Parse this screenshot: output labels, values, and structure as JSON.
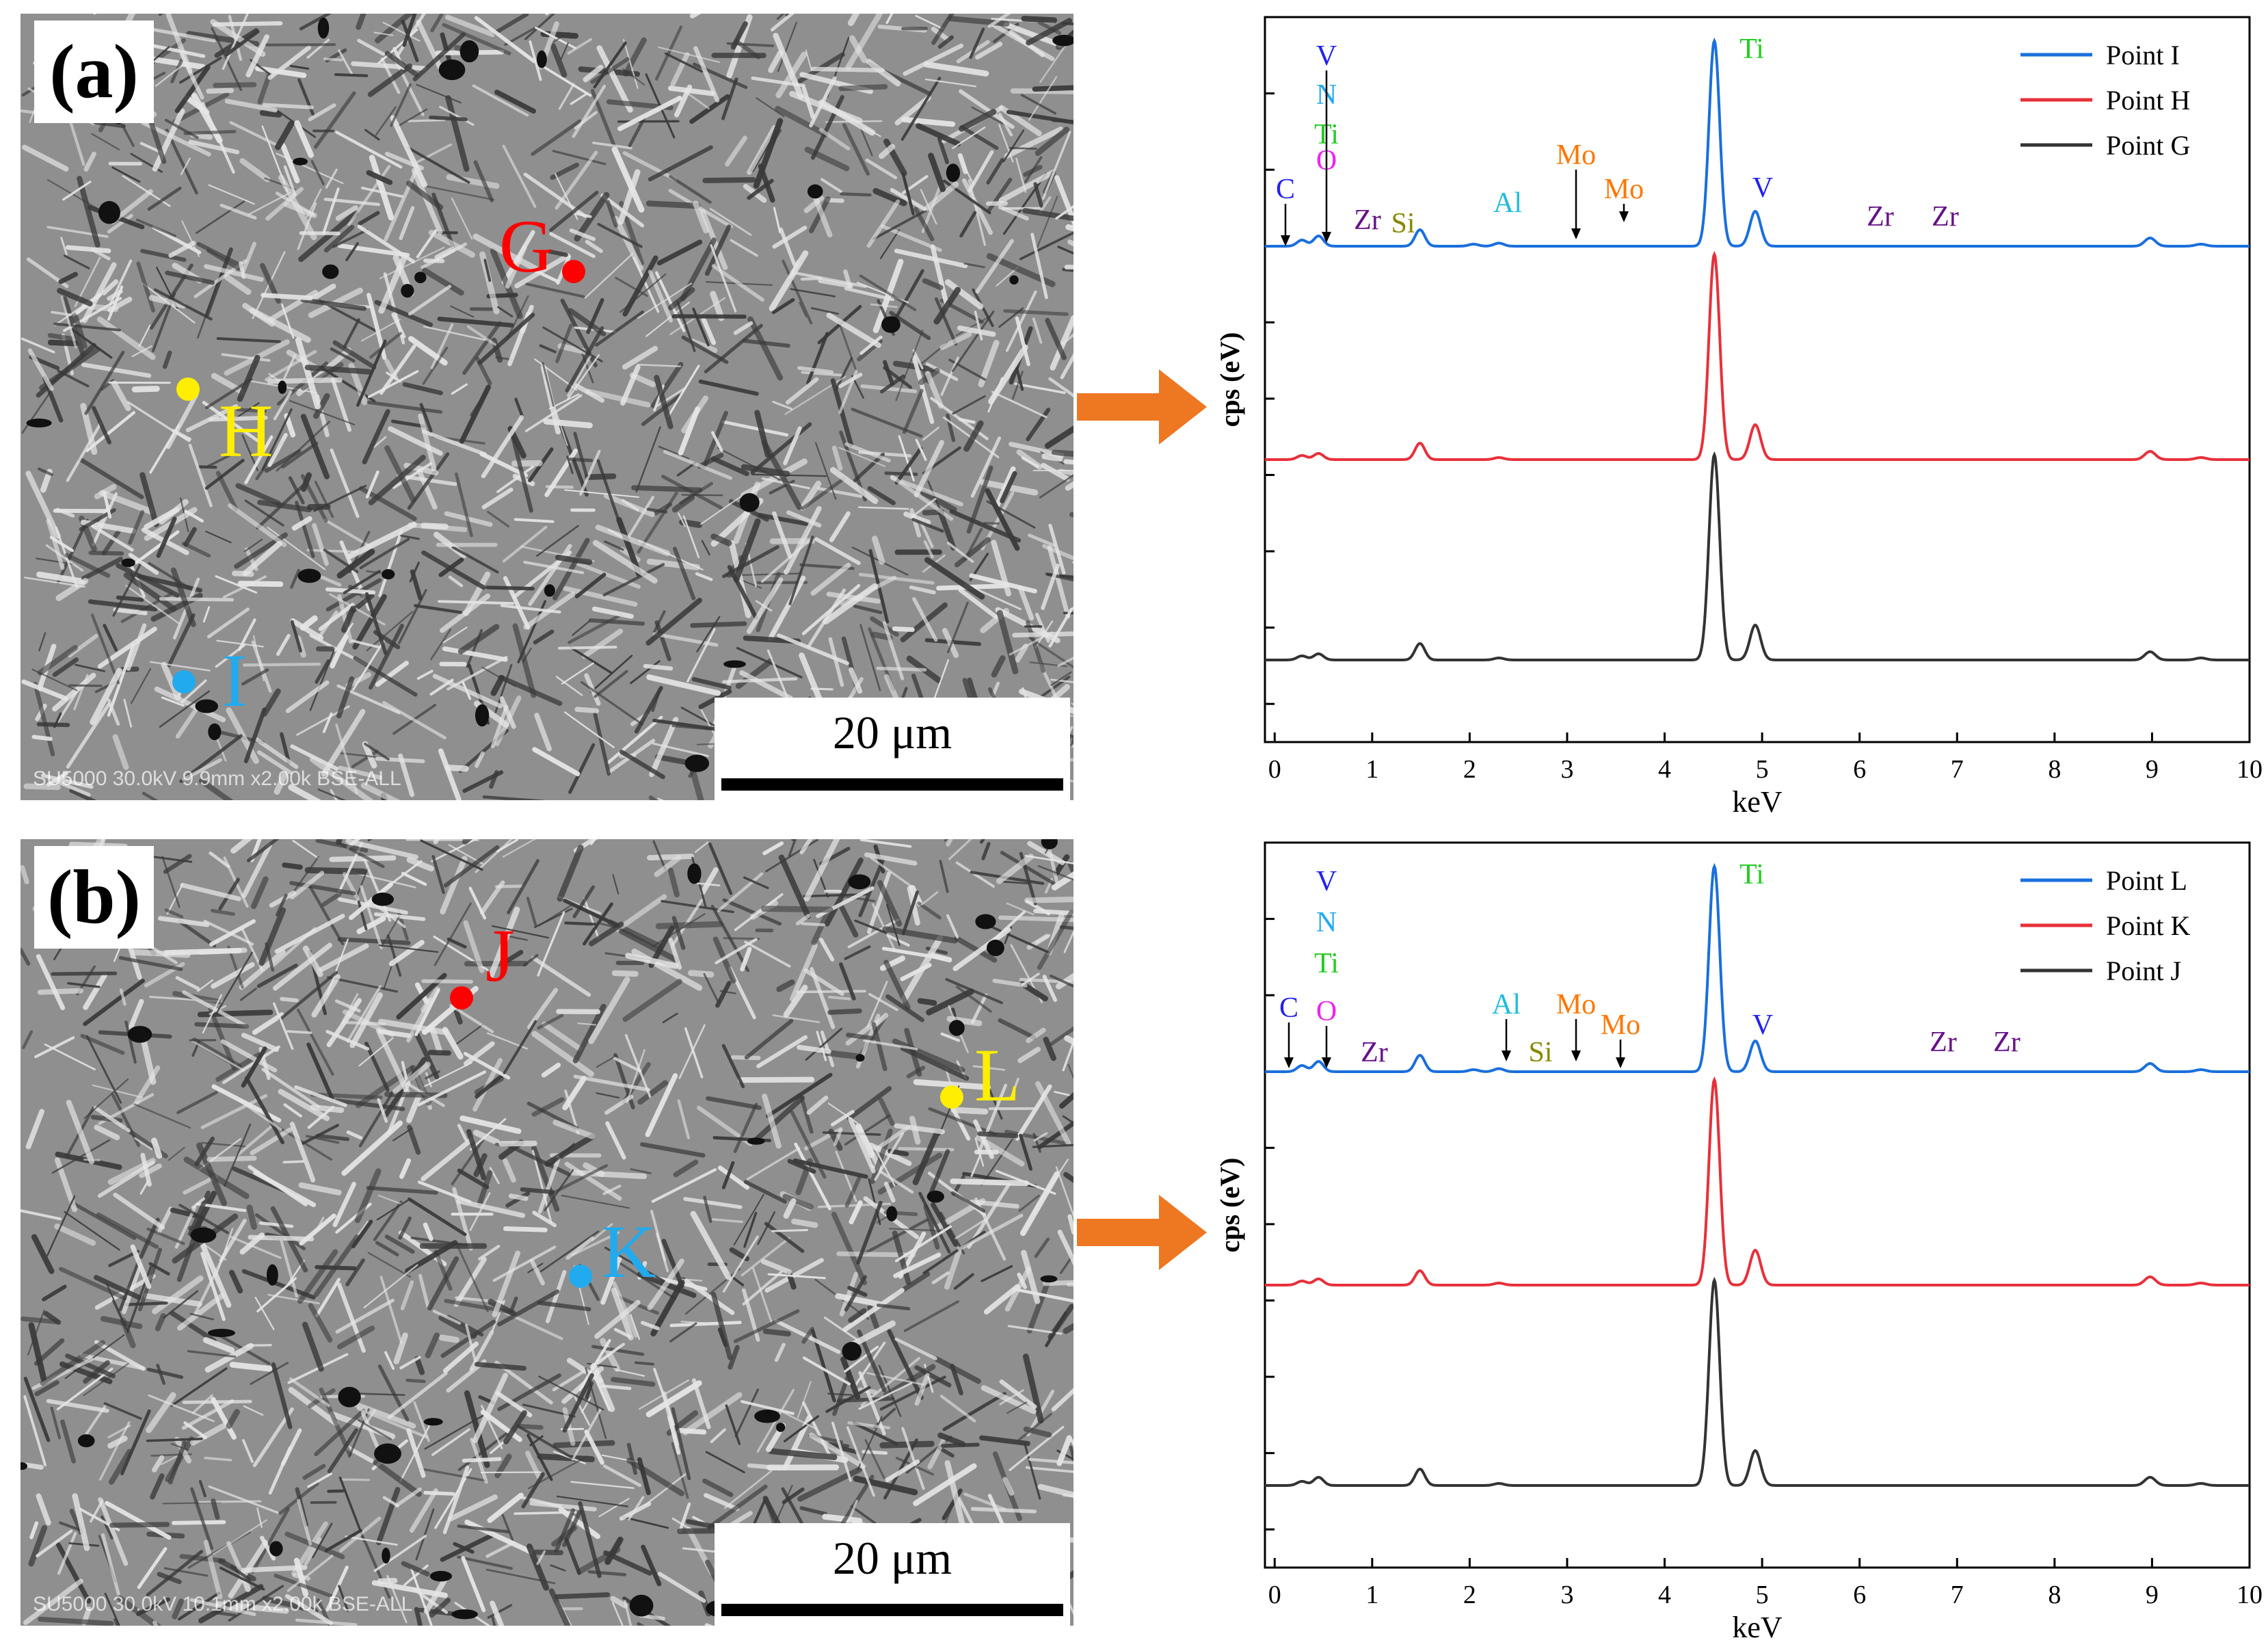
{
  "panels": [
    {
      "label": "(a)",
      "footer": "SU5000 30.0kV 9.9mm x2.00k BSE-ALL",
      "scale_bar": "20 μm",
      "points": [
        {
          "label": "G",
          "color": "#ff0000"
        },
        {
          "label": "H",
          "color": "#ffee00"
        },
        {
          "label": "I",
          "color": "#22aaee"
        }
      ],
      "elements": [
        "V",
        "N",
        "Ti",
        "O",
        "C",
        "Zr",
        "Si",
        "Al",
        "Mo",
        "Mo",
        "Ti",
        "V",
        "Zr",
        "Zr"
      ]
    },
    {
      "label": "(b)",
      "footer": "SU5000 30.0kV 10.1mm x2.00k BSE-ALL",
      "scale_bar": "20 μm",
      "points": [
        {
          "label": "J",
          "color": "#ff0000"
        },
        {
          "label": "L",
          "color": "#ffee00"
        },
        {
          "label": "K",
          "color": "#22aaee"
        }
      ],
      "elements": [
        "V",
        "N",
        "Ti",
        "C",
        "O",
        "Zr",
        "Al",
        "Si",
        "Mo",
        "Mo",
        "Ti",
        "V",
        "Zr",
        "Zr"
      ]
    }
  ],
  "chart_data": [
    {
      "type": "line",
      "xlabel": "keV",
      "ylabel": "cps (eV)",
      "xlim": [
        0,
        10
      ],
      "x_ticks": [
        0,
        1,
        2,
        3,
        4,
        5,
        6,
        7,
        8,
        9,
        10
      ],
      "legend_position": "top-right",
      "series": [
        {
          "name": "Point I",
          "color": "#1a6fdc",
          "peaks": [
            [
              0.28,
              0.03
            ],
            [
              0.45,
              0.05
            ],
            [
              1.49,
              0.08
            ],
            [
              2.04,
              0.01
            ],
            [
              2.3,
              0.015
            ],
            [
              4.51,
              1.0
            ],
            [
              4.93,
              0.17
            ],
            [
              8.98,
              0.04
            ],
            [
              9.5,
              0.01
            ]
          ]
        },
        {
          "name": "Point H",
          "color": "#e8303a",
          "peaks": [
            [
              0.28,
              0.02
            ],
            [
              0.45,
              0.03
            ],
            [
              1.49,
              0.08
            ],
            [
              2.3,
              0.01
            ],
            [
              4.51,
              1.0
            ],
            [
              4.93,
              0.17
            ],
            [
              8.98,
              0.04
            ],
            [
              9.5,
              0.01
            ]
          ]
        },
        {
          "name": "Point G",
          "color": "#333333",
          "peaks": [
            [
              0.28,
              0.02
            ],
            [
              0.45,
              0.03
            ],
            [
              1.49,
              0.08
            ],
            [
              2.3,
              0.01
            ],
            [
              4.51,
              1.0
            ],
            [
              4.93,
              0.17
            ],
            [
              8.98,
              0.04
            ],
            [
              9.5,
              0.01
            ]
          ]
        }
      ],
      "annotations": [
        {
          "text": "V",
          "x": 0.5,
          "color": "#2222ee"
        },
        {
          "text": "N",
          "x": 0.5,
          "color": "#22aaee"
        },
        {
          "text": "Ti",
          "x": 0.5,
          "color": "#22cc22"
        },
        {
          "text": "O",
          "x": 0.5,
          "color": "#ee22ee"
        },
        {
          "text": "C",
          "x": 0.15,
          "color": "#2222ee"
        },
        {
          "text": "Zr",
          "x": 0.75,
          "color": "#661188"
        },
        {
          "text": "Si",
          "x": 1.1,
          "color": "#888800"
        },
        {
          "text": "Al",
          "x": 1.5,
          "color": "#22bbdd"
        },
        {
          "text": "Mo",
          "x": 2.3,
          "color": "#ff7700"
        },
        {
          "text": "Mo",
          "x": 2.8,
          "color": "#ff7700"
        },
        {
          "text": "Ti",
          "x": 4.8,
          "color": "#22cc22"
        },
        {
          "text": "V",
          "x": 4.95,
          "color": "#2222ee"
        },
        {
          "text": "Zr",
          "x": 6.3,
          "color": "#661188"
        },
        {
          "text": "Zr",
          "x": 7.0,
          "color": "#661188"
        }
      ]
    },
    {
      "type": "line",
      "xlabel": "keV",
      "ylabel": "cps (eV)",
      "xlim": [
        0,
        10
      ],
      "x_ticks": [
        0,
        1,
        2,
        3,
        4,
        5,
        6,
        7,
        8,
        9,
        10
      ],
      "legend_position": "top-right",
      "series": [
        {
          "name": "Point L",
          "color": "#1a6fdc",
          "peaks": [
            [
              0.28,
              0.03
            ],
            [
              0.45,
              0.05
            ],
            [
              1.49,
              0.08
            ],
            [
              2.04,
              0.01
            ],
            [
              2.3,
              0.015
            ],
            [
              4.51,
              1.0
            ],
            [
              4.93,
              0.15
            ],
            [
              8.98,
              0.04
            ],
            [
              9.5,
              0.01
            ]
          ]
        },
        {
          "name": "Point K",
          "color": "#e8303a",
          "peaks": [
            [
              0.28,
              0.02
            ],
            [
              0.45,
              0.03
            ],
            [
              1.49,
              0.07
            ],
            [
              2.3,
              0.01
            ],
            [
              4.51,
              1.0
            ],
            [
              4.93,
              0.17
            ],
            [
              8.98,
              0.04
            ],
            [
              9.5,
              0.01
            ]
          ]
        },
        {
          "name": "Point J",
          "color": "#333333",
          "peaks": [
            [
              0.28,
              0.02
            ],
            [
              0.45,
              0.04
            ],
            [
              1.49,
              0.08
            ],
            [
              2.3,
              0.01
            ],
            [
              4.51,
              1.0
            ],
            [
              4.93,
              0.17
            ],
            [
              8.98,
              0.04
            ],
            [
              9.5,
              0.01
            ]
          ]
        }
      ],
      "annotations": [
        {
          "text": "V",
          "x": 0.5,
          "color": "#2222ee"
        },
        {
          "text": "N",
          "x": 0.5,
          "color": "#22aaee"
        },
        {
          "text": "Ti",
          "x": 0.5,
          "color": "#22cc22"
        },
        {
          "text": "C",
          "x": 0.2,
          "color": "#2222ee"
        },
        {
          "text": "O",
          "x": 0.5,
          "color": "#ee22ee"
        },
        {
          "text": "Zr",
          "x": 0.8,
          "color": "#661188"
        },
        {
          "text": "Al",
          "x": 1.5,
          "color": "#22bbdd"
        },
        {
          "text": "Si",
          "x": 1.75,
          "color": "#888800"
        },
        {
          "text": "Mo",
          "x": 2.3,
          "color": "#ff7700"
        },
        {
          "text": "Mo",
          "x": 2.8,
          "color": "#ff7700"
        },
        {
          "text": "Ti",
          "x": 4.8,
          "color": "#22cc22"
        },
        {
          "text": "V",
          "x": 4.95,
          "color": "#2222ee"
        },
        {
          "text": "Zr",
          "x": 6.9,
          "color": "#661188"
        },
        {
          "text": "Zr",
          "x": 7.5,
          "color": "#661188"
        }
      ]
    }
  ]
}
